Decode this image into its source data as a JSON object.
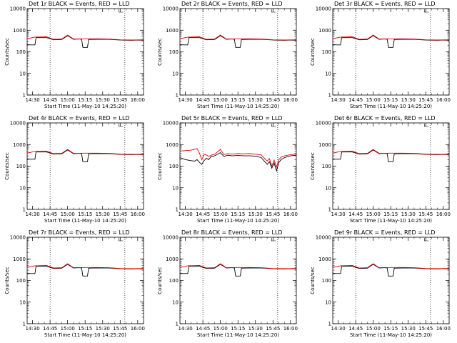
{
  "figure": {
    "legend_text": "BLACK = Events, RED = LLD",
    "xlabel": "Start Time (11-May-10 14:25:20)",
    "ylabel": "Counts/sec",
    "series_colors": {
      "events": "#000000",
      "lld": "#e00000"
    }
  },
  "chart_data": [
    {
      "type": "line",
      "title": "Det 1r",
      "yscale": "log",
      "ylim": [
        1,
        10000
      ],
      "yticks": [
        "1",
        "10",
        "100",
        "1000",
        "10000"
      ],
      "xticks": [
        "14:30",
        "14:45",
        "15:00",
        "15:15",
        "15:30",
        "15:45",
        "16:00"
      ],
      "xlim": [
        "14:25:20",
        "16:05"
      ],
      "markers": [
        "14:45",
        "15:49"
      ],
      "series": [
        {
          "name": "Events",
          "color": "#000000",
          "x": [
            "14:25",
            "14:28",
            "14:32",
            "14:33",
            "14:42",
            "14:48",
            "14:55",
            "15:00",
            "15:05",
            "15:10",
            "15:12",
            "15:13",
            "15:17",
            "15:18",
            "15:25",
            "15:35",
            "15:45",
            "15:55",
            "16:00",
            "16:05"
          ],
          "y": [
            220,
            210,
            210,
            450,
            450,
            360,
            370,
            560,
            380,
            390,
            380,
            160,
            160,
            370,
            380,
            380,
            350,
            340,
            350,
            340
          ]
        },
        {
          "name": "LLD",
          "color": "#e00000",
          "x": [
            "14:25",
            "14:32",
            "14:42",
            "14:48",
            "14:55",
            "15:00",
            "15:05",
            "15:15",
            "15:25",
            "15:35",
            "15:45",
            "15:55",
            "16:05"
          ],
          "y": [
            400,
            480,
            500,
            380,
            390,
            600,
            390,
            400,
            400,
            390,
            360,
            350,
            360
          ]
        }
      ]
    },
    {
      "type": "line",
      "title": "Det 2r",
      "yscale": "log",
      "ylim": [
        1,
        10000
      ],
      "yticks": [
        "1",
        "10",
        "100",
        "1000",
        "10000"
      ],
      "xticks": [
        "14:30",
        "14:45",
        "15:00",
        "15:15",
        "15:30",
        "15:45",
        "16:00"
      ],
      "xlim": [
        "14:25:20",
        "16:05"
      ],
      "markers": [
        "14:45",
        "15:49"
      ],
      "series": [
        {
          "name": "Events",
          "color": "#000000",
          "x": [
            "14:25",
            "14:28",
            "14:32",
            "14:33",
            "14:42",
            "14:48",
            "14:55",
            "15:00",
            "15:05",
            "15:10",
            "15:12",
            "15:13",
            "15:17",
            "15:18",
            "15:25",
            "15:35",
            "15:45",
            "15:55",
            "16:00",
            "16:05"
          ],
          "y": [
            220,
            210,
            210,
            450,
            450,
            360,
            370,
            560,
            380,
            390,
            380,
            160,
            160,
            370,
            380,
            380,
            350,
            340,
            350,
            340
          ]
        },
        {
          "name": "LLD",
          "color": "#e00000",
          "x": [
            "14:25",
            "14:32",
            "14:42",
            "14:48",
            "14:55",
            "15:00",
            "15:05",
            "15:15",
            "15:25",
            "15:35",
            "15:45",
            "15:55",
            "16:05"
          ],
          "y": [
            400,
            480,
            500,
            380,
            390,
            600,
            390,
            400,
            400,
            390,
            360,
            350,
            360
          ]
        }
      ]
    },
    {
      "type": "line",
      "title": "Det 3r",
      "yscale": "log",
      "ylim": [
        1,
        10000
      ],
      "yticks": [
        "1",
        "10",
        "100",
        "1000",
        "10000"
      ],
      "xticks": [
        "14:30",
        "14:45",
        "15:00",
        "15:15",
        "15:30",
        "15:45",
        "16:00"
      ],
      "xlim": [
        "14:25:20",
        "16:05"
      ],
      "markers": [
        "14:45",
        "15:49"
      ],
      "series": [
        {
          "name": "Events",
          "color": "#000000",
          "x": [
            "14:25",
            "14:28",
            "14:32",
            "14:33",
            "14:42",
            "14:48",
            "14:55",
            "15:00",
            "15:05",
            "15:10",
            "15:12",
            "15:13",
            "15:17",
            "15:18",
            "15:25",
            "15:35",
            "15:45",
            "15:55",
            "16:00",
            "16:05"
          ],
          "y": [
            220,
            210,
            210,
            450,
            450,
            360,
            370,
            560,
            380,
            390,
            380,
            160,
            160,
            370,
            380,
            380,
            350,
            340,
            350,
            340
          ]
        },
        {
          "name": "LLD",
          "color": "#e00000",
          "x": [
            "14:25",
            "14:32",
            "14:42",
            "14:48",
            "14:55",
            "15:00",
            "15:05",
            "15:15",
            "15:25",
            "15:35",
            "15:45",
            "15:55",
            "16:05"
          ],
          "y": [
            400,
            480,
            500,
            380,
            390,
            600,
            390,
            400,
            400,
            390,
            360,
            350,
            360
          ]
        }
      ]
    },
    {
      "type": "line",
      "title": "Det 4r",
      "yscale": "log",
      "ylim": [
        1,
        10000
      ],
      "yticks": [
        "1",
        "10",
        "100",
        "1000",
        "10000"
      ],
      "xticks": [
        "14:30",
        "14:45",
        "15:00",
        "15:15",
        "15:30",
        "15:45",
        "16:00"
      ],
      "xlim": [
        "14:25:20",
        "16:05"
      ],
      "markers": [
        "14:45",
        "15:49"
      ],
      "series": [
        {
          "name": "Events",
          "color": "#000000",
          "x": [
            "14:25",
            "14:28",
            "14:32",
            "14:33",
            "14:42",
            "14:48",
            "14:55",
            "15:00",
            "15:05",
            "15:10",
            "15:12",
            "15:13",
            "15:17",
            "15:18",
            "15:25",
            "15:35",
            "15:45",
            "15:55",
            "16:00",
            "16:05"
          ],
          "y": [
            220,
            210,
            210,
            450,
            450,
            360,
            370,
            560,
            380,
            390,
            380,
            160,
            160,
            370,
            380,
            380,
            350,
            340,
            350,
            340
          ]
        },
        {
          "name": "LLD",
          "color": "#e00000",
          "x": [
            "14:25",
            "14:32",
            "14:42",
            "14:48",
            "14:55",
            "15:00",
            "15:05",
            "15:15",
            "15:25",
            "15:35",
            "15:45",
            "15:55",
            "16:05"
          ],
          "y": [
            400,
            480,
            500,
            380,
            390,
            600,
            390,
            400,
            400,
            390,
            360,
            350,
            360
          ]
        }
      ]
    },
    {
      "type": "line",
      "title": "Det 5r",
      "yscale": "log",
      "ylim": [
        1,
        10000
      ],
      "yticks": [
        "1",
        "10",
        "100",
        "1000",
        "10000"
      ],
      "xticks": [
        "14:30",
        "14:45",
        "15:00",
        "15:15",
        "15:30",
        "15:45",
        "16:00"
      ],
      "xlim": [
        "14:25:20",
        "16:05"
      ],
      "markers": [
        "14:45",
        "15:49"
      ],
      "series": [
        {
          "name": "Events",
          "color": "#000000",
          "x": [
            "14:25",
            "14:30",
            "14:35",
            "14:38",
            "14:40",
            "14:42",
            "14:44",
            "14:46",
            "14:48",
            "14:50",
            "14:52",
            "14:55",
            "15:00",
            "15:03",
            "15:06",
            "15:10",
            "15:15",
            "15:20",
            "15:25",
            "15:30",
            "15:35",
            "15:40",
            "15:42",
            "15:44",
            "15:46",
            "15:48",
            "15:50",
            "15:52",
            "15:55",
            "16:00",
            "16:05"
          ],
          "y": [
            250,
            200,
            180,
            170,
            200,
            150,
            120,
            180,
            230,
            200,
            280,
            300,
            420,
            280,
            320,
            300,
            310,
            300,
            300,
            290,
            250,
            120,
            160,
            80,
            140,
            60,
            150,
            200,
            250,
            300,
            320
          ]
        },
        {
          "name": "LLD",
          "color": "#e00000",
          "x": [
            "14:25",
            "14:30",
            "14:35",
            "14:38",
            "14:40",
            "14:42",
            "14:44",
            "14:46",
            "14:48",
            "14:50",
            "14:52",
            "14:55",
            "15:00",
            "15:03",
            "15:06",
            "15:10",
            "15:15",
            "15:20",
            "15:25",
            "15:30",
            "15:35",
            "15:40",
            "15:42",
            "15:44",
            "15:46",
            "15:48",
            "15:50",
            "15:52",
            "15:55",
            "16:00",
            "16:05"
          ],
          "y": [
            500,
            520,
            550,
            600,
            650,
            400,
            200,
            350,
            330,
            280,
            320,
            350,
            600,
            340,
            380,
            360,
            380,
            370,
            380,
            360,
            330,
            170,
            220,
            100,
            190,
            90,
            200,
            260,
            300,
            340,
            360
          ]
        }
      ]
    },
    {
      "type": "line",
      "title": "Det 6r",
      "yscale": "log",
      "ylim": [
        1,
        10000
      ],
      "yticks": [
        "1",
        "10",
        "100",
        "1000",
        "10000"
      ],
      "xticks": [
        "14:30",
        "14:45",
        "15:00",
        "15:15",
        "15:30",
        "15:45",
        "16:00"
      ],
      "xlim": [
        "14:25:20",
        "16:05"
      ],
      "markers": [
        "14:45",
        "15:49"
      ],
      "series": [
        {
          "name": "Events",
          "color": "#000000",
          "x": [
            "14:25",
            "14:28",
            "14:32",
            "14:33",
            "14:42",
            "14:48",
            "14:55",
            "15:00",
            "15:05",
            "15:10",
            "15:12",
            "15:13",
            "15:17",
            "15:18",
            "15:25",
            "15:35",
            "15:45",
            "15:55",
            "16:00",
            "16:05"
          ],
          "y": [
            220,
            210,
            210,
            450,
            450,
            360,
            370,
            560,
            380,
            390,
            380,
            160,
            160,
            370,
            380,
            380,
            350,
            340,
            350,
            340
          ]
        },
        {
          "name": "LLD",
          "color": "#e00000",
          "x": [
            "14:25",
            "14:32",
            "14:42",
            "14:48",
            "14:55",
            "15:00",
            "15:05",
            "15:15",
            "15:25",
            "15:35",
            "15:45",
            "15:55",
            "16:05"
          ],
          "y": [
            400,
            480,
            500,
            380,
            390,
            600,
            390,
            400,
            400,
            390,
            360,
            350,
            360
          ]
        }
      ]
    },
    {
      "type": "line",
      "title": "Det 7r",
      "yscale": "log",
      "ylim": [
        1,
        10000
      ],
      "yticks": [
        "1",
        "10",
        "100",
        "1000",
        "10000"
      ],
      "xticks": [
        "14:30",
        "14:45",
        "15:00",
        "15:15",
        "15:30",
        "15:45",
        "16:00"
      ],
      "xlim": [
        "14:25:20",
        "16:05"
      ],
      "markers": [
        "14:45",
        "15:49"
      ],
      "series": [
        {
          "name": "Events",
          "color": "#000000",
          "x": [
            "14:25",
            "14:28",
            "14:32",
            "14:33",
            "14:42",
            "14:48",
            "14:55",
            "15:00",
            "15:05",
            "15:10",
            "15:12",
            "15:13",
            "15:17",
            "15:18",
            "15:25",
            "15:35",
            "15:45",
            "15:55",
            "16:00",
            "16:05"
          ],
          "y": [
            220,
            210,
            210,
            450,
            450,
            360,
            370,
            560,
            380,
            390,
            380,
            160,
            160,
            370,
            380,
            380,
            350,
            340,
            350,
            340
          ]
        },
        {
          "name": "LLD",
          "color": "#e00000",
          "x": [
            "14:25",
            "14:32",
            "14:42",
            "14:48",
            "14:55",
            "15:00",
            "15:05",
            "15:15",
            "15:25",
            "15:35",
            "15:45",
            "15:55",
            "16:05"
          ],
          "y": [
            400,
            480,
            500,
            380,
            390,
            600,
            390,
            400,
            400,
            390,
            360,
            350,
            360
          ]
        }
      ]
    },
    {
      "type": "line",
      "title": "Det 8r",
      "yscale": "log",
      "ylim": [
        1,
        10000
      ],
      "yticks": [
        "1",
        "10",
        "100",
        "1000",
        "10000"
      ],
      "xticks": [
        "14:30",
        "14:45",
        "15:00",
        "15:15",
        "15:30",
        "15:45",
        "16:00"
      ],
      "xlim": [
        "14:25:20",
        "16:05"
      ],
      "markers": [
        "14:45",
        "15:49"
      ],
      "series": [
        {
          "name": "Events",
          "color": "#000000",
          "x": [
            "14:25",
            "14:28",
            "14:32",
            "14:33",
            "14:42",
            "14:48",
            "14:55",
            "15:00",
            "15:05",
            "15:10",
            "15:12",
            "15:13",
            "15:17",
            "15:18",
            "15:25",
            "15:35",
            "15:45",
            "15:55",
            "16:00",
            "16:05"
          ],
          "y": [
            220,
            210,
            210,
            450,
            450,
            360,
            370,
            560,
            380,
            390,
            380,
            160,
            160,
            370,
            380,
            380,
            350,
            340,
            350,
            340
          ]
        },
        {
          "name": "LLD",
          "color": "#e00000",
          "x": [
            "14:25",
            "14:32",
            "14:42",
            "14:48",
            "14:55",
            "15:00",
            "15:05",
            "15:15",
            "15:25",
            "15:35",
            "15:45",
            "15:55",
            "16:05"
          ],
          "y": [
            400,
            480,
            500,
            380,
            390,
            600,
            390,
            400,
            400,
            390,
            360,
            350,
            360
          ]
        }
      ]
    },
    {
      "type": "line",
      "title": "Det 9r",
      "yscale": "log",
      "ylim": [
        1,
        10000
      ],
      "yticks": [
        "1",
        "10",
        "100",
        "1000",
        "10000"
      ],
      "xticks": [
        "14:30",
        "14:45",
        "15:00",
        "15:15",
        "15:30",
        "15:45",
        "16:00"
      ],
      "xlim": [
        "14:25:20",
        "16:05"
      ],
      "markers": [
        "14:45",
        "15:49"
      ],
      "series": [
        {
          "name": "Events",
          "color": "#000000",
          "x": [
            "14:25",
            "14:28",
            "14:32",
            "14:33",
            "14:42",
            "14:48",
            "14:55",
            "15:00",
            "15:05",
            "15:10",
            "15:12",
            "15:13",
            "15:17",
            "15:18",
            "15:25",
            "15:35",
            "15:45",
            "15:55",
            "16:00",
            "16:05"
          ],
          "y": [
            220,
            210,
            210,
            450,
            450,
            360,
            370,
            560,
            380,
            390,
            380,
            160,
            160,
            370,
            380,
            380,
            350,
            340,
            350,
            340
          ]
        },
        {
          "name": "LLD",
          "color": "#e00000",
          "x": [
            "14:25",
            "14:32",
            "14:42",
            "14:48",
            "14:55",
            "15:00",
            "15:05",
            "15:15",
            "15:25",
            "15:35",
            "15:45",
            "15:55",
            "16:05"
          ],
          "y": [
            400,
            480,
            500,
            380,
            390,
            600,
            390,
            400,
            400,
            390,
            360,
            350,
            360
          ]
        }
      ]
    }
  ]
}
